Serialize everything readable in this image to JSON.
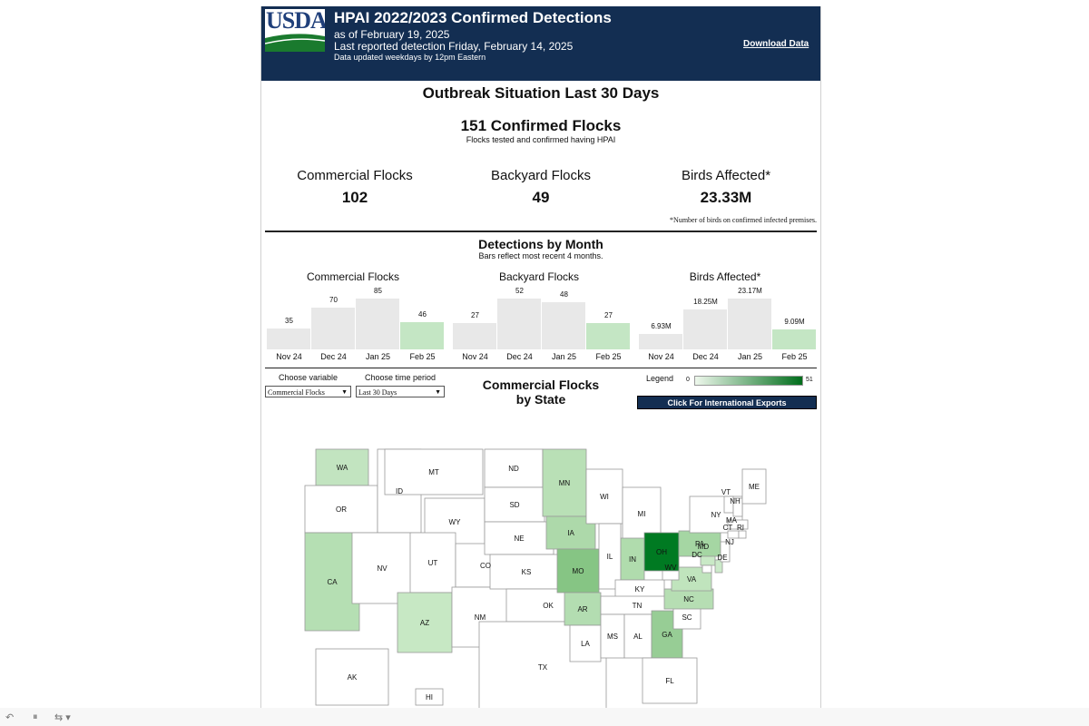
{
  "header": {
    "logo_text": "USDA",
    "title": "HPAI 2022/2023 Confirmed Detections",
    "as_of": "as of February 19, 2025",
    "last_reported": "Last reported detection Friday, February 14, 2025",
    "updated_note": "Data updated weekdays by 12pm Eastern",
    "download_label": "Download Data"
  },
  "outbreak": {
    "title": "Outbreak Situation Last 30 Days",
    "confirmed": "151 Confirmed Flocks",
    "confirmed_note": "Flocks tested and confirmed having HPAI",
    "kpis": [
      {
        "label": "Commercial Flocks",
        "value": "102"
      },
      {
        "label": "Backyard Flocks",
        "value": "49"
      },
      {
        "label": "Birds Affected*",
        "value": "23.33M"
      }
    ],
    "footnote": "*Number of birds on confirmed infected premises."
  },
  "monthly": {
    "title": "Detections by Month",
    "subtitle": "Bars reflect most recent 4 months.",
    "bar_color": "#e8e8e8",
    "highlight_color": "#c4e6c4"
  },
  "chart_data": [
    {
      "type": "bar",
      "title": "Commercial Flocks",
      "categories": [
        "Nov 24",
        "Dec 24",
        "Jan 25",
        "Feb 25"
      ],
      "values": [
        35,
        70,
        85,
        46
      ],
      "value_labels": [
        "35",
        "70",
        "85",
        "46"
      ]
    },
    {
      "type": "bar",
      "title": "Backyard Flocks",
      "categories": [
        "Nov 24",
        "Dec 24",
        "Jan 25",
        "Feb 25"
      ],
      "values": [
        27,
        52,
        48,
        27
      ],
      "value_labels": [
        "27",
        "52",
        "48",
        "27"
      ]
    },
    {
      "type": "bar",
      "title": "Birds Affected*",
      "categories": [
        "Nov 24",
        "Dec 24",
        "Jan 25",
        "Feb 25"
      ],
      "values": [
        6.93,
        18.25,
        23.17,
        9.09
      ],
      "value_labels": [
        "6.93M",
        "18.25M",
        "23.17M",
        "9.09M"
      ]
    }
  ],
  "controls": {
    "variable_label": "Choose variable",
    "variable_value": "Commercial Flocks",
    "period_label": "Choose time period",
    "period_value": "Last 30 Days"
  },
  "map": {
    "title_line1": "Commercial Flocks",
    "title_line2": "by State",
    "legend_label": "Legend",
    "legend_min": "0",
    "legend_max": "51",
    "legend_colors": [
      "#eef8ec",
      "#006d1b"
    ],
    "intl_button": "Click For International Exports",
    "shaded_states": [
      "WA",
      "CA",
      "AZ",
      "MN",
      "IA",
      "MO",
      "AR",
      "IN",
      "OH",
      "PA",
      "VA",
      "NC",
      "GA",
      "MD",
      "DE"
    ],
    "state_labels": [
      "WA",
      "OR",
      "CA",
      "ID",
      "MT",
      "WY",
      "NV",
      "UT",
      "CO",
      "AZ",
      "NM",
      "ND",
      "SD",
      "NE",
      "KS",
      "OK",
      "TX",
      "MN",
      "IA",
      "MO",
      "AR",
      "LA",
      "WI",
      "IL",
      "MI",
      "IN",
      "KY",
      "TN",
      "MS",
      "AL",
      "GA",
      "FL",
      "SC",
      "NC",
      "VA",
      "WV",
      "OH",
      "PA",
      "NY",
      "MD",
      "DC",
      "DE",
      "NJ",
      "VT",
      "NH",
      "MA",
      "CT",
      "RI",
      "ME",
      "AK",
      "HI"
    ]
  }
}
